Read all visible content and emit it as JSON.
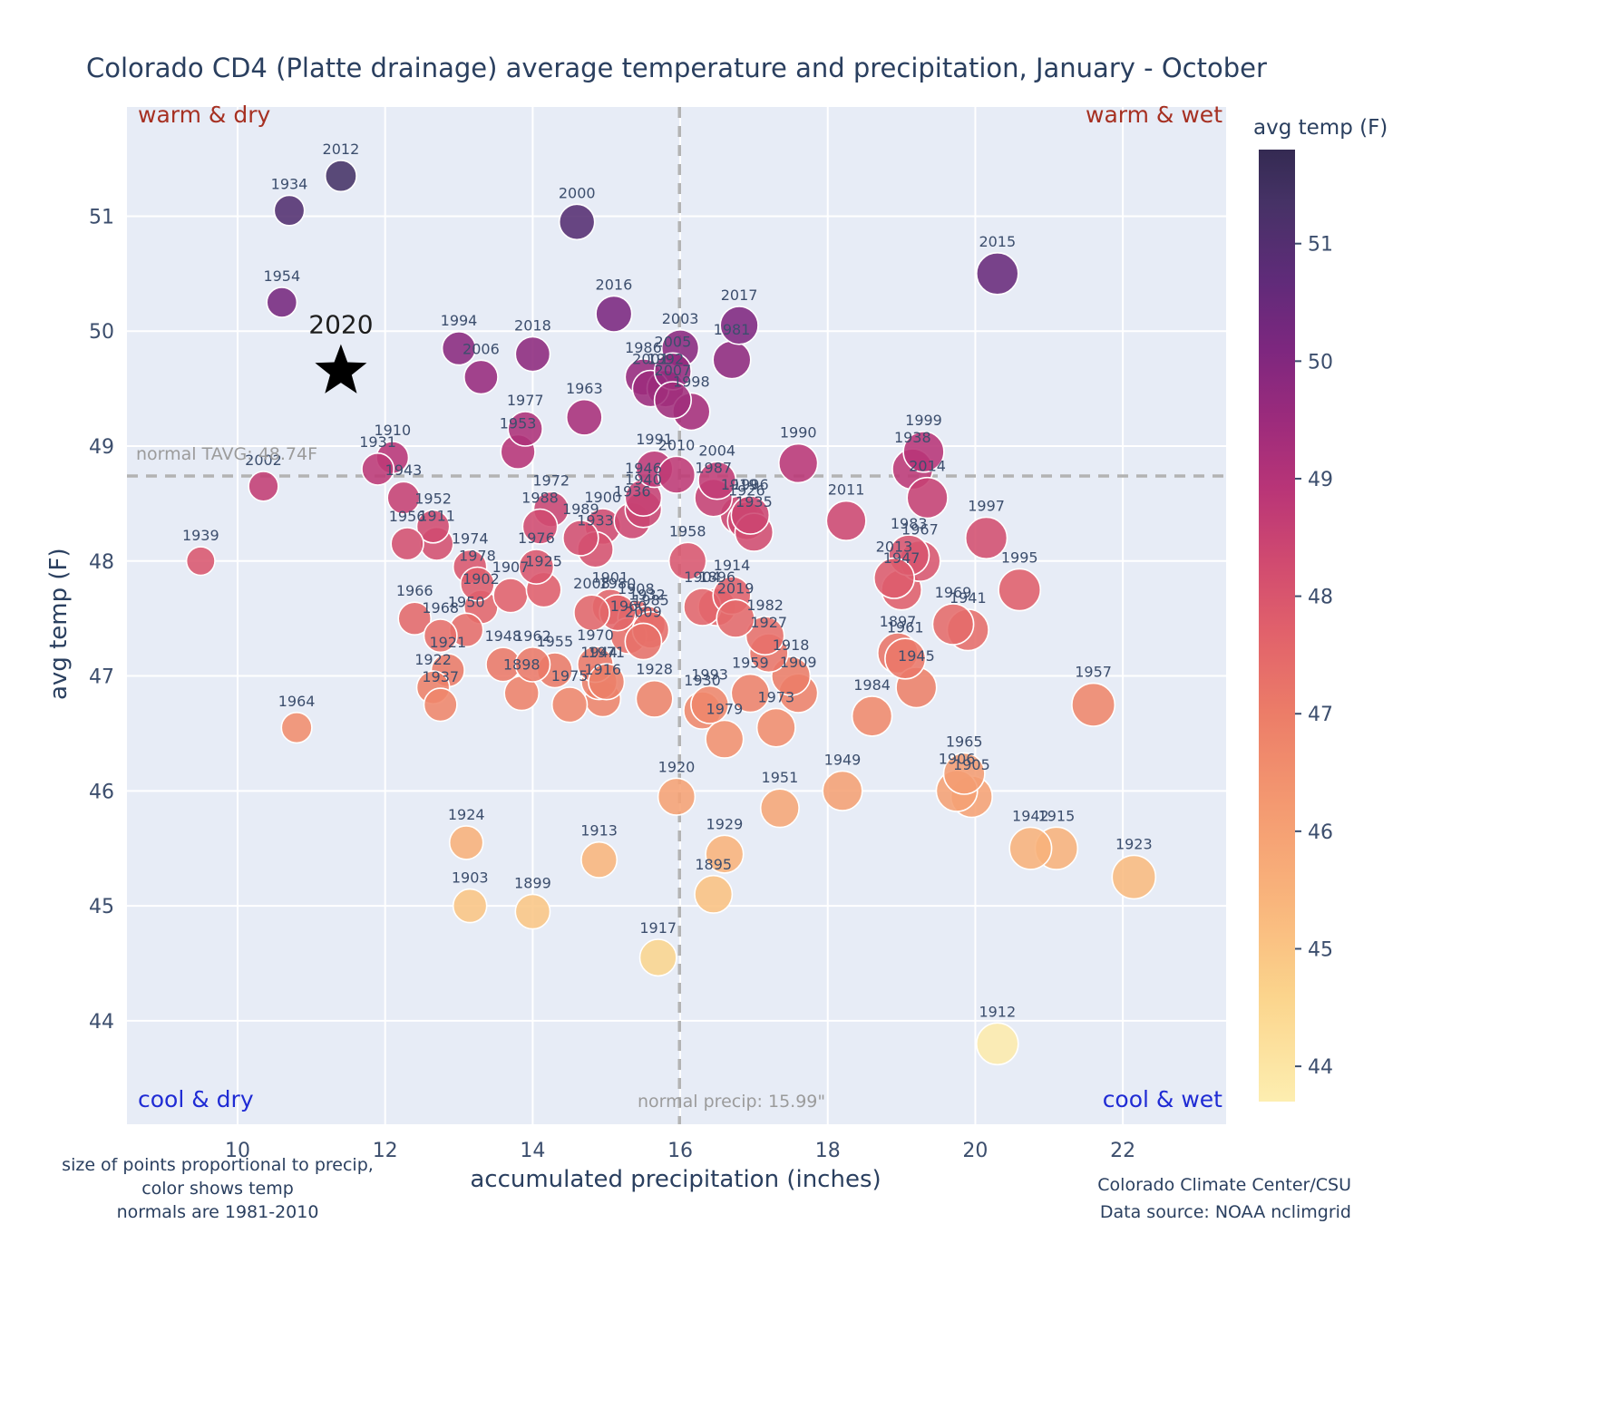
{
  "title": "Colorado CD4 (Platte drainage) average temperature and precipitation, January - October",
  "axes": {
    "x_title": "accumulated precipitation (inches)",
    "y_title": "avg temp (F)"
  },
  "colorbar": {
    "title": "avg temp (F)",
    "ticks": [
      44,
      45,
      46,
      47,
      48,
      49,
      50,
      51
    ],
    "vmin": 43.7,
    "vmax": 51.8
  },
  "quadrants": {
    "top_left": "warm & dry",
    "top_right": "warm & wet",
    "bottom_left": "cool & dry",
    "bottom_right": "cool & wet"
  },
  "reference": {
    "tavg_label": "normal TAVG: 48.74F",
    "tavg": 48.74,
    "precip_label": "normal precip: 15.99\"",
    "precip": 15.99
  },
  "footnotes": {
    "left": [
      "size of points proportional to precip,",
      "color shows temp",
      "normals are 1981-2010"
    ],
    "right": [
      "Colorado Climate Center/CSU",
      "Data source: NOAA nclimgrid"
    ]
  },
  "colors": {
    "warm_label": "#a63022",
    "cool_label": "#1f2bd4",
    "plot_background": "#e7ecf6",
    "grid": "#ffffff",
    "reference_line": "#b3b3b3",
    "text": "#2a3f5f",
    "point_label": "#3c4e6d"
  },
  "chart_data": {
    "type": "scatter",
    "title": "Colorado CD4 (Platte drainage) average temperature and precipitation, January - October",
    "xlabel": "accumulated precipitation (inches)",
    "ylabel": "avg temp (F)",
    "x_ticks": [
      10,
      12,
      14,
      16,
      18,
      20,
      22
    ],
    "y_ticks": [
      44,
      45,
      46,
      47,
      48,
      49,
      50,
      51
    ],
    "xlim": [
      8.5,
      23.4
    ],
    "ylim": [
      43.1,
      51.95
    ],
    "grid": true,
    "size_encoding": "precip",
    "color_encoding": "temp",
    "colormap_stops": [
      [
        43.7,
        "#fdeeb0"
      ],
      [
        44.6,
        "#fbd48c"
      ],
      [
        45.4,
        "#f9b57c"
      ],
      [
        46.2,
        "#f49a71"
      ],
      [
        47.0,
        "#ec7d68"
      ],
      [
        47.7,
        "#e1616b"
      ],
      [
        48.3,
        "#d04a70"
      ],
      [
        48.9,
        "#b93577"
      ],
      [
        49.5,
        "#9c2b7c"
      ],
      [
        50.1,
        "#7d277f"
      ],
      [
        50.7,
        "#5f2b79"
      ],
      [
        51.35,
        "#463266"
      ],
      [
        51.8,
        "#342a52"
      ]
    ],
    "star": {
      "year": "2020",
      "precip": 11.4,
      "temp": 49.65
    },
    "points": [
      {
        "year": 1895,
        "precip": 16.45,
        "temp": 45.1
      },
      {
        "year": 1896,
        "precip": 16.5,
        "temp": 47.6
      },
      {
        "year": 1897,
        "precip": 18.95,
        "temp": 47.2
      },
      {
        "year": 1898,
        "precip": 13.85,
        "temp": 46.85
      },
      {
        "year": 1899,
        "precip": 14.0,
        "temp": 44.95
      },
      {
        "year": 1900,
        "precip": 14.95,
        "temp": 48.3
      },
      {
        "year": 1901,
        "precip": 15.05,
        "temp": 47.6
      },
      {
        "year": 1902,
        "precip": 13.3,
        "temp": 47.6
      },
      {
        "year": 1903,
        "precip": 13.15,
        "temp": 45.0
      },
      {
        "year": 1904,
        "precip": 16.3,
        "temp": 47.6
      },
      {
        "year": 1905,
        "precip": 19.95,
        "temp": 45.95
      },
      {
        "year": 1906,
        "precip": 19.75,
        "temp": 46.0
      },
      {
        "year": 1907,
        "precip": 13.7,
        "temp": 47.7
      },
      {
        "year": 1908,
        "precip": 15.4,
        "temp": 47.5
      },
      {
        "year": 1909,
        "precip": 17.6,
        "temp": 46.85
      },
      {
        "year": 1910,
        "precip": 12.1,
        "temp": 48.9
      },
      {
        "year": 1911,
        "precip": 12.7,
        "temp": 48.15
      },
      {
        "year": 1912,
        "precip": 20.3,
        "temp": 43.8
      },
      {
        "year": 1913,
        "precip": 14.9,
        "temp": 45.4
      },
      {
        "year": 1914,
        "precip": 16.7,
        "temp": 47.7
      },
      {
        "year": 1915,
        "precip": 21.1,
        "temp": 45.5
      },
      {
        "year": 1916,
        "precip": 14.95,
        "temp": 46.8
      },
      {
        "year": 1917,
        "precip": 15.7,
        "temp": 44.55
      },
      {
        "year": 1918,
        "precip": 17.5,
        "temp": 47.0
      },
      {
        "year": 1919,
        "precip": 16.8,
        "temp": 48.4
      },
      {
        "year": 1920,
        "precip": 15.95,
        "temp": 45.95
      },
      {
        "year": 1921,
        "precip": 12.85,
        "temp": 47.05
      },
      {
        "year": 1922,
        "precip": 12.65,
        "temp": 46.9
      },
      {
        "year": 1923,
        "precip": 22.15,
        "temp": 45.25
      },
      {
        "year": 1924,
        "precip": 13.1,
        "temp": 45.55
      },
      {
        "year": 1925,
        "precip": 14.15,
        "temp": 47.75
      },
      {
        "year": 1926,
        "precip": 16.9,
        "temp": 48.35
      },
      {
        "year": 1927,
        "precip": 17.2,
        "temp": 47.2
      },
      {
        "year": 1928,
        "precip": 15.65,
        "temp": 46.8
      },
      {
        "year": 1929,
        "precip": 16.6,
        "temp": 45.45
      },
      {
        "year": 1930,
        "precip": 16.3,
        "temp": 46.7
      },
      {
        "year": 1931,
        "precip": 11.9,
        "temp": 48.8
      },
      {
        "year": 1932,
        "precip": 15.55,
        "temp": 47.45
      },
      {
        "year": 1933,
        "precip": 14.85,
        "temp": 48.1
      },
      {
        "year": 1934,
        "precip": 10.7,
        "temp": 51.05
      },
      {
        "year": 1935,
        "precip": 17.0,
        "temp": 48.25
      },
      {
        "year": 1936,
        "precip": 15.35,
        "temp": 48.35
      },
      {
        "year": 1937,
        "precip": 12.75,
        "temp": 46.75
      },
      {
        "year": 1938,
        "precip": 19.15,
        "temp": 48.8
      },
      {
        "year": 1939,
        "precip": 9.5,
        "temp": 48.0
      },
      {
        "year": 1940,
        "precip": 15.5,
        "temp": 48.45
      },
      {
        "year": 1941,
        "precip": 19.9,
        "temp": 47.4
      },
      {
        "year": 1942,
        "precip": 20.75,
        "temp": 45.5
      },
      {
        "year": 1943,
        "precip": 12.25,
        "temp": 48.55
      },
      {
        "year": 1944,
        "precip": 14.9,
        "temp": 46.95
      },
      {
        "year": 1945,
        "precip": 19.2,
        "temp": 46.9
      },
      {
        "year": 1946,
        "precip": 15.5,
        "temp": 48.55
      },
      {
        "year": 1947,
        "precip": 19.0,
        "temp": 47.75
      },
      {
        "year": 1948,
        "precip": 13.6,
        "temp": 47.1
      },
      {
        "year": 1949,
        "precip": 18.2,
        "temp": 46.0
      },
      {
        "year": 1950,
        "precip": 13.1,
        "temp": 47.4
      },
      {
        "year": 1951,
        "precip": 17.35,
        "temp": 45.85
      },
      {
        "year": 1952,
        "precip": 12.65,
        "temp": 48.3
      },
      {
        "year": 1953,
        "precip": 13.8,
        "temp": 48.95
      },
      {
        "year": 1954,
        "precip": 10.6,
        "temp": 50.25
      },
      {
        "year": 1955,
        "precip": 14.3,
        "temp": 47.05
      },
      {
        "year": 1956,
        "precip": 12.3,
        "temp": 48.15
      },
      {
        "year": 1957,
        "precip": 21.6,
        "temp": 46.75
      },
      {
        "year": 1958,
        "precip": 16.1,
        "temp": 48.0
      },
      {
        "year": 1959,
        "precip": 16.95,
        "temp": 46.85
      },
      {
        "year": 1960,
        "precip": 15.3,
        "temp": 47.35
      },
      {
        "year": 1961,
        "precip": 19.05,
        "temp": 47.15
      },
      {
        "year": 1962,
        "precip": 14.0,
        "temp": 47.1
      },
      {
        "year": 1963,
        "precip": 14.7,
        "temp": 49.25
      },
      {
        "year": 1964,
        "precip": 10.8,
        "temp": 46.55
      },
      {
        "year": 1965,
        "precip": 19.85,
        "temp": 46.15
      },
      {
        "year": 1966,
        "precip": 12.4,
        "temp": 47.5
      },
      {
        "year": 1967,
        "precip": 19.25,
        "temp": 48.0
      },
      {
        "year": 1968,
        "precip": 12.75,
        "temp": 47.35
      },
      {
        "year": 1969,
        "precip": 19.7,
        "temp": 47.45
      },
      {
        "year": 1970,
        "precip": 14.85,
        "temp": 47.1
      },
      {
        "year": 1971,
        "precip": 15.0,
        "temp": 46.95
      },
      {
        "year": 1972,
        "precip": 14.25,
        "temp": 48.45
      },
      {
        "year": 1973,
        "precip": 17.3,
        "temp": 46.55
      },
      {
        "year": 1974,
        "precip": 13.15,
        "temp": 47.95
      },
      {
        "year": 1975,
        "precip": 14.5,
        "temp": 46.75
      },
      {
        "year": 1976,
        "precip": 14.05,
        "temp": 47.95
      },
      {
        "year": 1977,
        "precip": 13.9,
        "temp": 49.15
      },
      {
        "year": 1978,
        "precip": 13.25,
        "temp": 47.8
      },
      {
        "year": 1979,
        "precip": 16.6,
        "temp": 46.45
      },
      {
        "year": 1980,
        "precip": 15.15,
        "temp": 47.55
      },
      {
        "year": 1981,
        "precip": 16.7,
        "temp": 49.75
      },
      {
        "year": 1982,
        "precip": 17.15,
        "temp": 47.35
      },
      {
        "year": 1983,
        "precip": 19.1,
        "temp": 48.05
      },
      {
        "year": 1984,
        "precip": 18.6,
        "temp": 46.65
      },
      {
        "year": 1985,
        "precip": 15.6,
        "temp": 47.4
      },
      {
        "year": 1986,
        "precip": 15.5,
        "temp": 49.6
      },
      {
        "year": 1987,
        "precip": 16.45,
        "temp": 48.55
      },
      {
        "year": 1988,
        "precip": 14.1,
        "temp": 48.3
      },
      {
        "year": 1989,
        "precip": 14.65,
        "temp": 48.2
      },
      {
        "year": 1990,
        "precip": 17.6,
        "temp": 48.85
      },
      {
        "year": 1991,
        "precip": 15.65,
        "temp": 48.8
      },
      {
        "year": 1992,
        "precip": 15.8,
        "temp": 49.5
      },
      {
        "year": 1993,
        "precip": 16.4,
        "temp": 46.75
      },
      {
        "year": 1994,
        "precip": 13.0,
        "temp": 49.85
      },
      {
        "year": 1995,
        "precip": 20.6,
        "temp": 47.75
      },
      {
        "year": 1996,
        "precip": 16.95,
        "temp": 48.4
      },
      {
        "year": 1997,
        "precip": 20.15,
        "temp": 48.2
      },
      {
        "year": 1998,
        "precip": 16.15,
        "temp": 49.3
      },
      {
        "year": 1999,
        "precip": 19.3,
        "temp": 48.95
      },
      {
        "year": 2000,
        "precip": 14.6,
        "temp": 50.95
      },
      {
        "year": 2001,
        "precip": 15.6,
        "temp": 49.5
      },
      {
        "year": 2002,
        "precip": 10.35,
        "temp": 48.65
      },
      {
        "year": 2003,
        "precip": 16.0,
        "temp": 49.85
      },
      {
        "year": 2004,
        "precip": 16.5,
        "temp": 48.7
      },
      {
        "year": 2005,
        "precip": 15.9,
        "temp": 49.65
      },
      {
        "year": 2006,
        "precip": 13.3,
        "temp": 49.6
      },
      {
        "year": 2007,
        "precip": 15.9,
        "temp": 49.4
      },
      {
        "year": 2008,
        "precip": 14.8,
        "temp": 47.55
      },
      {
        "year": 2009,
        "precip": 15.5,
        "temp": 47.3
      },
      {
        "year": 2010,
        "precip": 15.95,
        "temp": 48.75
      },
      {
        "year": 2011,
        "precip": 18.25,
        "temp": 48.35
      },
      {
        "year": 2012,
        "precip": 11.4,
        "temp": 51.35
      },
      {
        "year": 2013,
        "precip": 18.9,
        "temp": 47.85
      },
      {
        "year": 2014,
        "precip": 19.35,
        "temp": 48.55
      },
      {
        "year": 2015,
        "precip": 20.3,
        "temp": 50.5
      },
      {
        "year": 2016,
        "precip": 15.1,
        "temp": 50.15
      },
      {
        "year": 2017,
        "precip": 16.8,
        "temp": 50.05
      },
      {
        "year": 2018,
        "precip": 14.0,
        "temp": 49.8
      },
      {
        "year": 2019,
        "precip": 16.75,
        "temp": 47.5
      }
    ]
  }
}
